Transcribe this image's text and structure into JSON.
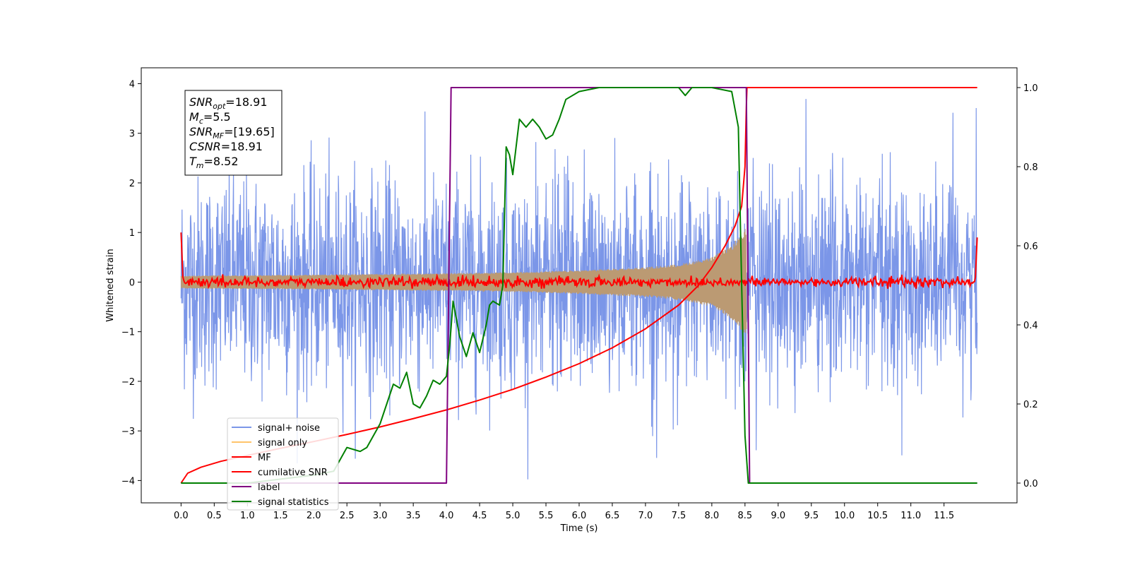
{
  "chart_data": {
    "type": "line",
    "xlabel": "Time (s)",
    "ylabel_left": "Whitened strain",
    "xlim": [
      -0.6,
      12.6
    ],
    "ylim_left": [
      -4.45,
      4.32
    ],
    "ylim_right": [
      -0.05,
      1.05
    ],
    "x_ticks": [
      "0.0",
      "0.5",
      "1.0",
      "1.5",
      "2.0",
      "2.5",
      "3.0",
      "3.5",
      "4.0",
      "4.5",
      "5.0",
      "5.5",
      "6.0",
      "6.5",
      "7.0",
      "7.5",
      "8.0",
      "8.5",
      "9.0",
      "9.5",
      "10.0",
      "10.5",
      "11.0",
      "11.5"
    ],
    "y_ticks_left": [
      "4",
      "3",
      "2",
      "1",
      "0",
      "−1",
      "−2",
      "−3",
      "−4"
    ],
    "y_ticks_right": [
      "1.0",
      "0.8",
      "0.6",
      "0.4",
      "0.2",
      "0.0"
    ],
    "colors": {
      "signal_noise": "#7b96e8",
      "signal_only": "#bb9a73",
      "signal_only_legend": "#ffc46b",
      "mf": "#ff0000",
      "cumulative_snr": "#ff0000",
      "label": "#800080",
      "signal_statistics": "#008000"
    },
    "series": [
      {
        "name": "signal+ noise",
        "axis": "left",
        "style": "noise",
        "x_range": [
          0.0,
          12.0
        ],
        "amplitude_peak": 3.9,
        "amplitude_min": -4.1
      },
      {
        "name": "signal only",
        "axis": "left",
        "style": "chirp",
        "x_range": [
          0.0,
          8.52
        ],
        "envelope": [
          [
            0.0,
            0.13
          ],
          [
            2.0,
            0.15
          ],
          [
            4.0,
            0.18
          ],
          [
            5.0,
            0.2
          ],
          [
            6.0,
            0.24
          ],
          [
            7.0,
            0.3
          ],
          [
            7.5,
            0.36
          ],
          [
            8.0,
            0.5
          ],
          [
            8.3,
            0.75
          ],
          [
            8.45,
            1.0
          ],
          [
            8.52,
            1.1
          ]
        ]
      },
      {
        "name": "MF",
        "axis": "left",
        "style": "flat-noise",
        "x_range": [
          0.0,
          12.0
        ],
        "level": 0.0,
        "noise": 0.05,
        "edge_start": 1.0,
        "edge_end": 0.9
      },
      {
        "name": "cumilative SNR",
        "axis": "right",
        "x": [
          0.0,
          0.1,
          0.3,
          0.6,
          1.0,
          1.5,
          2.0,
          2.5,
          3.0,
          3.5,
          4.0,
          4.5,
          5.0,
          5.5,
          6.0,
          6.5,
          7.0,
          7.5,
          7.8,
          8.0,
          8.2,
          8.35,
          8.45,
          8.5,
          8.52,
          8.53,
          12.0
        ],
        "values": [
          0.0,
          0.025,
          0.04,
          0.055,
          0.07,
          0.088,
          0.105,
          0.123,
          0.142,
          0.163,
          0.185,
          0.21,
          0.237,
          0.268,
          0.302,
          0.342,
          0.39,
          0.45,
          0.5,
          0.545,
          0.6,
          0.65,
          0.7,
          0.8,
          0.95,
          1.0,
          1.0
        ]
      },
      {
        "name": "label",
        "axis": "right",
        "x": [
          0.0,
          4.0,
          4.07,
          8.52,
          8.57,
          12.0
        ],
        "values": [
          0.0,
          0.0,
          1.0,
          1.0,
          0.0,
          0.0
        ]
      },
      {
        "name": "signal statistics",
        "axis": "right",
        "x": [
          0.0,
          0.5,
          1.0,
          1.5,
          2.0,
          2.3,
          2.5,
          2.7,
          2.8,
          3.0,
          3.1,
          3.2,
          3.3,
          3.4,
          3.5,
          3.6,
          3.7,
          3.8,
          3.9,
          4.0,
          4.05,
          4.1,
          4.2,
          4.3,
          4.4,
          4.5,
          4.6,
          4.65,
          4.7,
          4.8,
          4.85,
          4.9,
          4.95,
          5.0,
          5.1,
          5.2,
          5.3,
          5.4,
          5.5,
          5.6,
          5.7,
          5.8,
          6.0,
          6.3,
          6.5,
          7.0,
          7.5,
          7.6,
          7.7,
          8.0,
          8.3,
          8.4,
          8.45,
          8.5,
          8.55,
          8.6,
          12.0
        ],
        "values": [
          0.0,
          0.0,
          0.0,
          0.01,
          0.02,
          0.03,
          0.09,
          0.08,
          0.09,
          0.15,
          0.2,
          0.25,
          0.24,
          0.28,
          0.2,
          0.19,
          0.22,
          0.26,
          0.25,
          0.27,
          0.35,
          0.46,
          0.37,
          0.32,
          0.38,
          0.33,
          0.4,
          0.45,
          0.46,
          0.45,
          0.5,
          0.85,
          0.83,
          0.78,
          0.92,
          0.9,
          0.92,
          0.9,
          0.87,
          0.88,
          0.92,
          0.97,
          0.99,
          1.0,
          1.0,
          1.0,
          1.0,
          0.98,
          1.0,
          1.0,
          0.99,
          0.9,
          0.5,
          0.12,
          0.0,
          0.0,
          0.0
        ]
      }
    ],
    "legend": {
      "placement": "lower left",
      "entries": [
        "signal+ noise",
        "signal only",
        "MF",
        "cumilative SNR",
        "label",
        "signal statistics"
      ]
    },
    "annotation": {
      "lines": [
        {
          "label": "SNR",
          "sub": "opt",
          "value": "=18.91"
        },
        {
          "label": "M",
          "sub": "c",
          "value": "=5.5"
        },
        {
          "label": "SNR",
          "sub": "MF",
          "value": "=[19.65]"
        },
        {
          "label": "CSNR",
          "sub": "",
          "value": "=18.91"
        },
        {
          "label": "T",
          "sub": "m",
          "value": "=8.52"
        }
      ]
    }
  }
}
